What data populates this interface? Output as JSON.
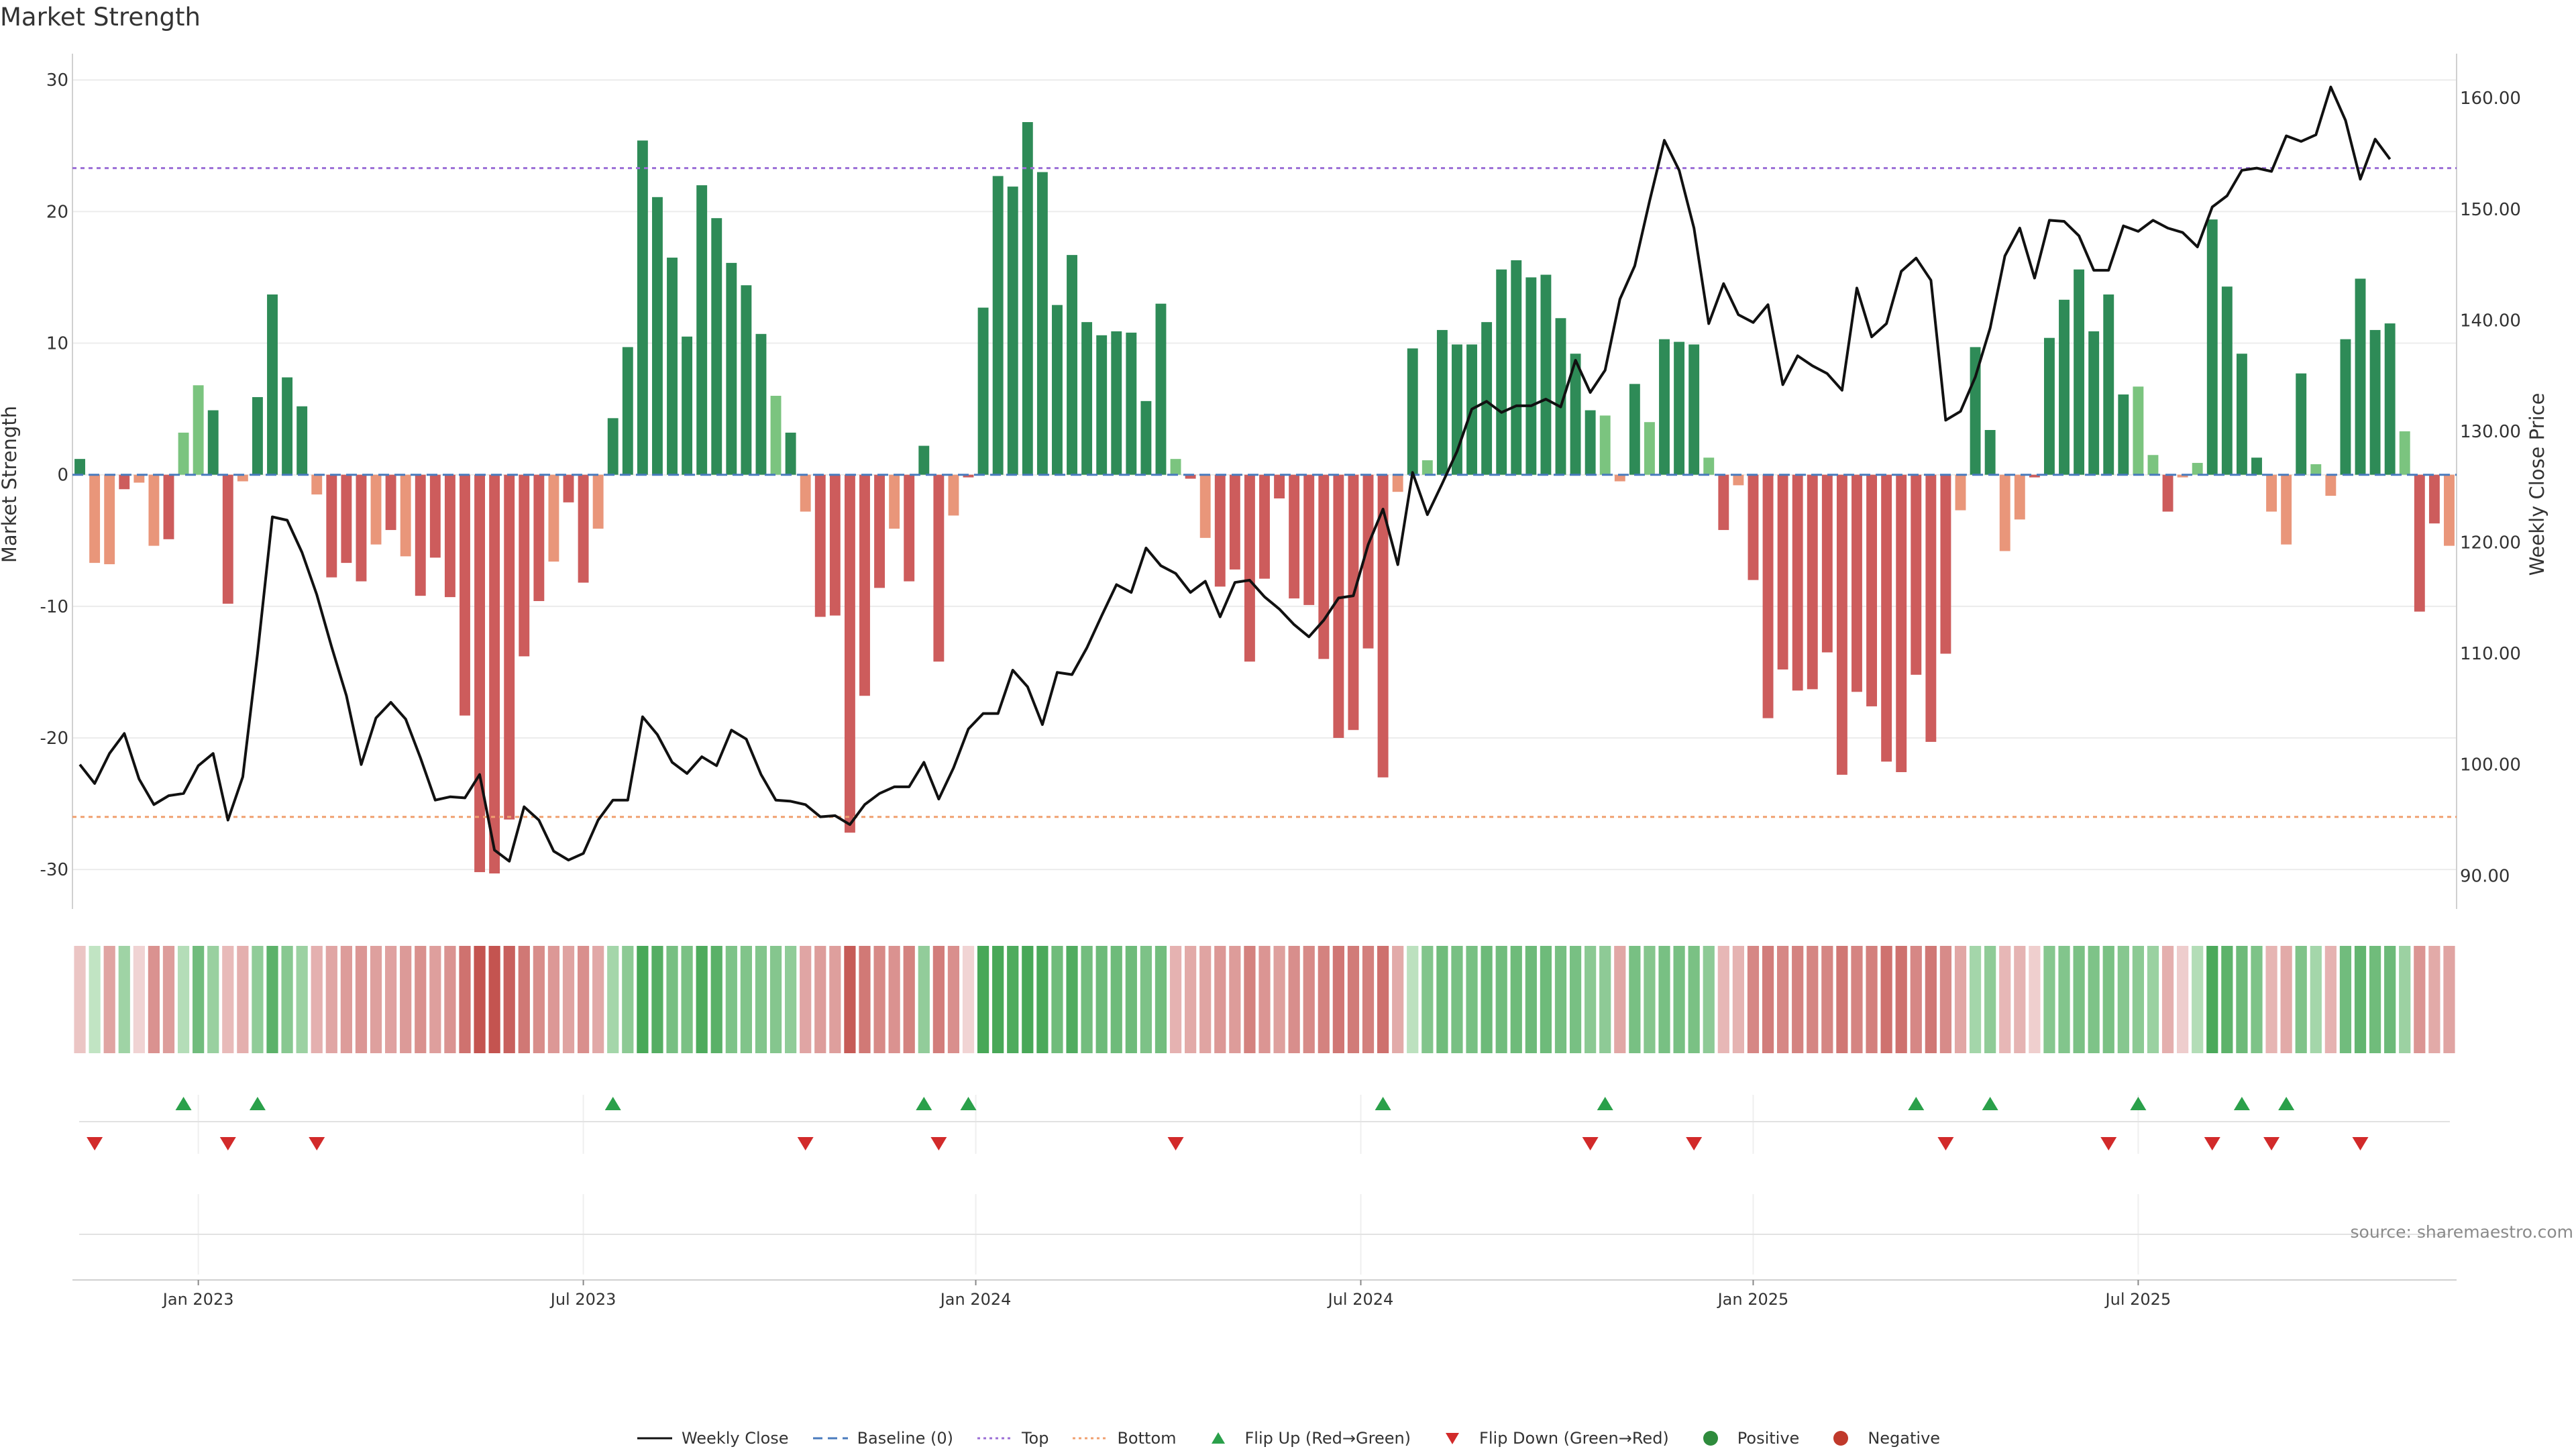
{
  "title": "Market Strength",
  "source_note": "source: sharemaestro.com",
  "legend": [
    {
      "key": "line",
      "label": "Weekly Close"
    },
    {
      "key": "baseline",
      "label": "Baseline (0)"
    },
    {
      "key": "top",
      "label": "Top"
    },
    {
      "key": "bottom",
      "label": "Bottom"
    },
    {
      "key": "flip_up",
      "label": "Flip Up (Red→Green)"
    },
    {
      "key": "flip_down",
      "label": "Flip Down (Green→Red)"
    },
    {
      "key": "positive",
      "label": "Positive"
    },
    {
      "key": "negative",
      "label": "Negative"
    }
  ],
  "colors": {
    "line": "#111111",
    "baseline": "#4a7bbd",
    "top": "#9b6fd6",
    "bottom": "#f0a070",
    "flip_up": "#2aa04a",
    "flip_down": "#d22a2a",
    "positive": "#2e8b3c",
    "negative": "#c0392b",
    "pos_strong": "#2e8b57",
    "pos_light": "#7bc47f",
    "neg_strong": "#cd5c5c",
    "neg_light": "#e9967a"
  },
  "chart_data": {
    "type": "bar",
    "xlabel": "",
    "ylabel": "Market Strength",
    "y2label": "Weekly Close Price",
    "ylim": [
      -33,
      32
    ],
    "y2lim": [
      87,
      164
    ],
    "y_ticks": [
      -30,
      -20,
      -10,
      0,
      10,
      20,
      30
    ],
    "y2_ticks": [
      "90.00",
      "100.00",
      "110.00",
      "120.00",
      "130.00",
      "140.00",
      "150.00",
      "160.00"
    ],
    "x_ticks": [
      {
        "label": "Jan 2023",
        "week": 8.5
      },
      {
        "label": "Jul 2023",
        "week": 34.5
      },
      {
        "label": "Jan 2024",
        "week": 61
      },
      {
        "label": "Jul 2024",
        "week": 87
      },
      {
        "label": "Jan 2025",
        "week": 113.5
      },
      {
        "label": "Jul 2025",
        "week": 139.5
      }
    ],
    "top_level": 23.3,
    "bottom_level": -26,
    "grid": true,
    "legend_position": "bottom",
    "strength": [
      1.2,
      -6.7,
      -6.8,
      -1.1,
      -0.6,
      -5.4,
      -4.9,
      3.2,
      6.8,
      4.9,
      -9.8,
      -0.5,
      5.9,
      13.7,
      7.4,
      5.2,
      -1.5,
      -7.8,
      -6.7,
      -8.1,
      -5.3,
      -4.2,
      -6.2,
      -9.2,
      -6.3,
      -9.3,
      -18.3,
      -30.2,
      -30.3,
      -26.2,
      -13.8,
      -9.6,
      -6.6,
      -2.1,
      -8.2,
      -4.1,
      4.3,
      9.7,
      25.4,
      21.1,
      16.5,
      10.5,
      22.0,
      19.5,
      16.1,
      14.4,
      10.7,
      6.0,
      3.2,
      -2.8,
      -10.8,
      -10.7,
      -27.2,
      -16.8,
      -8.6,
      -4.1,
      -8.1,
      2.2,
      -14.2,
      -3.1,
      -0.2,
      12.7,
      22.7,
      21.9,
      26.8,
      23.0,
      12.9,
      16.7,
      11.6,
      10.6,
      10.9,
      10.8,
      5.6,
      13.0,
      1.2,
      -0.3,
      -4.8,
      -8.5,
      -7.2,
      -14.2,
      -7.9,
      -1.8,
      -9.4,
      -9.9,
      -14.0,
      -20.0,
      -19.4,
      -13.2,
      -23.0,
      -1.3,
      9.6,
      1.1,
      11.0,
      9.9,
      9.9,
      11.6,
      15.6,
      16.3,
      15.0,
      15.2,
      11.9,
      9.2,
      4.9,
      4.5,
      -0.5,
      6.9,
      4.0,
      10.3,
      10.1,
      9.9,
      1.3,
      -4.2,
      -0.8,
      -8.0,
      -18.5,
      -14.8,
      -16.4,
      -16.3,
      -13.5,
      -22.8,
      -16.5,
      -17.6,
      -21.8,
      -22.6,
      -15.2,
      -20.3,
      -13.6,
      -2.7,
      9.7,
      3.4,
      -5.8,
      -3.4,
      -0.2,
      10.4,
      13.3,
      15.6,
      10.9,
      13.7,
      6.1,
      6.7,
      1.5,
      -2.8,
      -0.2,
      0.9,
      19.4,
      14.3,
      9.2,
      1.3,
      -2.8,
      -5.3,
      7.7,
      0.8,
      -1.6,
      10.3,
      14.9,
      11.0,
      11.5,
      3.3,
      -10.4,
      -3.7,
      -5.4
    ],
    "weekly_close": [
      100.0,
      98.3,
      101.0,
      102.8,
      98.7,
      96.4,
      97.2,
      97.4,
      99.9,
      101.0,
      95.0,
      98.9,
      110.0,
      122.3,
      122.0,
      119.1,
      115.3,
      110.6,
      106.2,
      100.0,
      104.2,
      105.6,
      104.1,
      100.6,
      96.8,
      97.1,
      97.0,
      99.1,
      92.3,
      91.3,
      96.2,
      95.0,
      92.2,
      91.4,
      92.0,
      95.0,
      96.8,
      96.8,
      104.3,
      102.7,
      100.2,
      99.2,
      100.7,
      99.9,
      103.1,
      102.3,
      99.1,
      96.8,
      96.7,
      96.4,
      95.3,
      95.4,
      94.6,
      96.4,
      97.4,
      98.0,
      98.0,
      100.2,
      96.9,
      99.7,
      103.2,
      104.6,
      104.6,
      108.5,
      107.0,
      103.6,
      108.3,
      108.1,
      110.5,
      113.4,
      116.2,
      115.5,
      119.5,
      117.9,
      117.2,
      115.5,
      116.5,
      113.3,
      116.4,
      116.6,
      115.1,
      114.0,
      112.6,
      111.5,
      113.0,
      115.0,
      115.2,
      119.8,
      123.0,
      118.0,
      126.3,
      122.5,
      125.3,
      128.2,
      132.0,
      132.7,
      131.7,
      132.3,
      132.3,
      132.9,
      132.2,
      136.4,
      133.5,
      135.5,
      141.9,
      144.9,
      150.7,
      156.2,
      153.5,
      148.3,
      139.7,
      143.3,
      140.5,
      139.8,
      141.4,
      134.2,
      136.8,
      135.9,
      135.2,
      133.7,
      142.9,
      138.5,
      139.7,
      144.4,
      145.6,
      143.6,
      131.0,
      131.8,
      134.9,
      139.3,
      145.8,
      148.3,
      143.8,
      149.0,
      148.9,
      147.6,
      144.5,
      144.5,
      148.5,
      148.0,
      149.0,
      148.3,
      147.9,
      146.6,
      150.2,
      151.2,
      153.5,
      153.7,
      153.4,
      156.6,
      156.1,
      156.7,
      161.0,
      158.0,
      152.7,
      156.3,
      154.5
    ],
    "heat_strip": [
      -1.8,
      1.5,
      -4.2,
      3.9,
      -0.8,
      -5.5,
      -4.7,
      2.4,
      7.1,
      4.3,
      -2.6,
      -3.4,
      4.9,
      8.6,
      5.5,
      4.1,
      -3.3,
      -4.1,
      -4.8,
      -5.2,
      -4.5,
      -4.4,
      -4.9,
      -5.6,
      -4.6,
      -5.4,
      -7.8,
      -10.2,
      -10.3,
      -9.1,
      -7.4,
      -5.9,
      -5.1,
      -4.3,
      -5.7,
      -3.9,
      3.5,
      5.2,
      10.0,
      9.1,
      6.7,
      6.5,
      9.6,
      8.7,
      6.2,
      6.0,
      5.9,
      5.7,
      4.9,
      -4.1,
      -4.7,
      -4.6,
      -9.5,
      -7.3,
      -6.1,
      -5.5,
      -6.6,
      4.8,
      -7.0,
      -5.7,
      -0.7,
      10.0,
      10.0,
      9.6,
      10.0,
      9.8,
      7.2,
      9.4,
      7.0,
      7.4,
      7.3,
      7.3,
      6.3,
      7.0,
      -3.2,
      -3.8,
      -4.2,
      -5.1,
      -4.8,
      -6.7,
      -5.3,
      -4.5,
      -5.8,
      -6.1,
      -6.7,
      -7.5,
      -7.2,
      -6.8,
      -7.9,
      -3.7,
      1.8,
      5.9,
      7.2,
      6.6,
      6.6,
      7.4,
      7.1,
      7.3,
      7.4,
      7.3,
      6.7,
      6.6,
      5.3,
      5.1,
      -4.0,
      6.6,
      5.7,
      6.6,
      6.6,
      6.5,
      5.1,
      -2.8,
      -3.1,
      -6.3,
      -7.0,
      -6.3,
      -6.6,
      -6.4,
      -6.4,
      -7.5,
      -6.5,
      -6.8,
      -7.8,
      -7.9,
      -6.3,
      -7.4,
      -6.0,
      -4.0,
      3.5,
      5.0,
      -2.8,
      -3.1,
      -1.1,
      5.6,
      5.9,
      6.4,
      6.2,
      6.5,
      5.6,
      5.2,
      4.2,
      -3.4,
      -1.2,
      2.5,
      9.8,
      8.5,
      7.4,
      6.2,
      -3.0,
      -3.8,
      6.1,
      3.5,
      -3.2,
      7.1,
      8.1,
      7.2,
      7.4,
      4.1,
      -5.3,
      -3.8,
      -4.2
    ],
    "flip_up_weeks": [
      7,
      12,
      36,
      57,
      60,
      88,
      103,
      124,
      129,
      139,
      146,
      149
    ],
    "flip_down_weeks": [
      1,
      10,
      16,
      49,
      58,
      74,
      102,
      109,
      126,
      137,
      144,
      148,
      154
    ]
  }
}
